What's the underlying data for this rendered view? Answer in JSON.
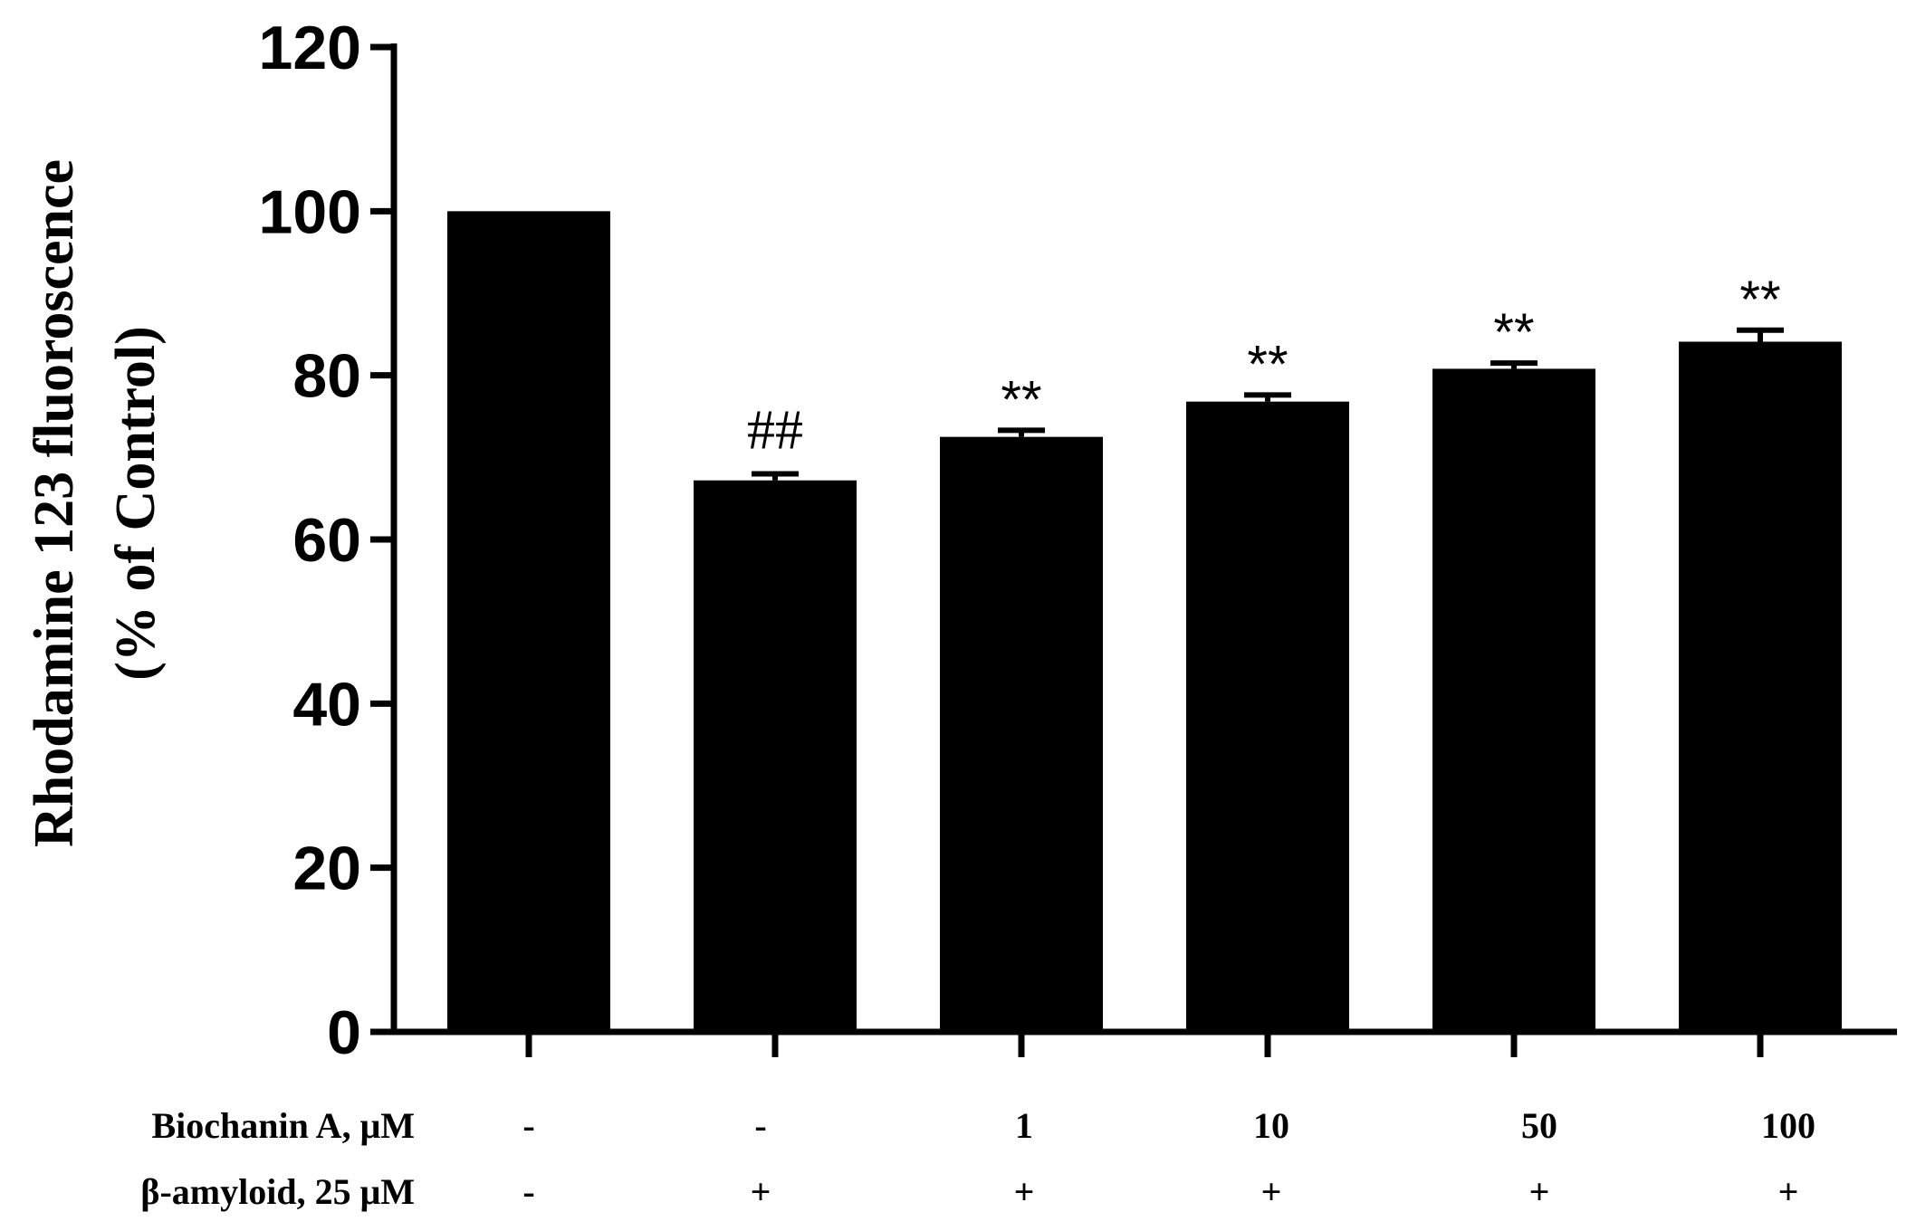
{
  "chart_data": {
    "type": "bar",
    "ylabel_line1": "Rhodamine 123 fluoroscence",
    "ylabel_line2": "(% of Control)",
    "ylim": [
      0,
      120
    ],
    "yticks": [
      0,
      20,
      40,
      60,
      80,
      100,
      120
    ],
    "grid": false,
    "bar_color": "#000000",
    "values": [
      100,
      67.2,
      72.5,
      76.8,
      80.8,
      84.1
    ],
    "errors": [
      0,
      0.8,
      0.8,
      0.8,
      0.7,
      1.4
    ],
    "annotations": [
      "",
      "##",
      "**",
      "**",
      "**",
      "**"
    ],
    "conditions": [
      {
        "label": "Biochanin A, μM",
        "values": [
          "-",
          "-",
          "1",
          "10",
          "50",
          "100"
        ]
      },
      {
        "label": "β-amyloid, 25 μM",
        "values": [
          "-",
          "+",
          "+",
          "+",
          "+",
          "+"
        ]
      }
    ]
  }
}
